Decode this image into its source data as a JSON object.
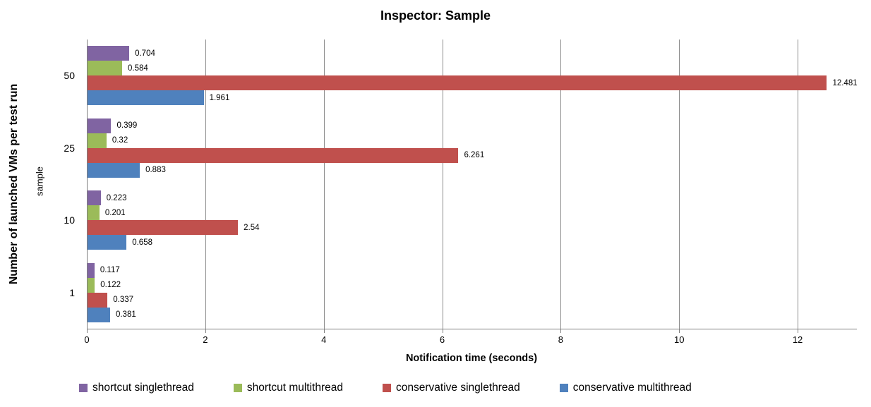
{
  "chart_data": {
    "type": "bar",
    "orientation": "horizontal",
    "title": "Inspector: Sample",
    "xlabel": "Notification time (seconds)",
    "ylabel": "Number of launched VMs per test run",
    "ylabel_sub": "sample",
    "categories": [
      "50",
      "25",
      "10",
      "1"
    ],
    "series": [
      {
        "name": "shortcut singlethread",
        "color": "#8064A2",
        "values": [
          0.704,
          0.399,
          0.223,
          0.117
        ],
        "labels": [
          "0.704",
          "0.399",
          "0.223",
          "0.117"
        ]
      },
      {
        "name": "shortcut multithread",
        "color": "#9BBB59",
        "values": [
          0.584,
          0.32,
          0.201,
          0.122
        ],
        "labels": [
          "0.584",
          "0.32",
          "0.201",
          "0.122"
        ]
      },
      {
        "name": "conservative singlethread",
        "color": "#C0504D",
        "values": [
          12.481,
          6.261,
          2.54,
          0.337
        ],
        "labels": [
          "12.481",
          "6.261",
          "2.54",
          "0.337"
        ]
      },
      {
        "name": "conservative multithread",
        "color": "#4F81BD",
        "values": [
          1.961,
          0.883,
          0.658,
          0.381
        ],
        "labels": [
          "1.961",
          "0.883",
          "0.658",
          "0.381"
        ]
      }
    ],
    "xlim": [
      0,
      13
    ],
    "xticks": [
      "0",
      "2",
      "4",
      "6",
      "8",
      "10",
      "12"
    ],
    "grid": "vertical",
    "legend_position": "bottom",
    "colors": {
      "axis": "#7f7f7f",
      "gridline": "#8c8c8c",
      "text": "#000000",
      "background": "#ffffff"
    }
  }
}
